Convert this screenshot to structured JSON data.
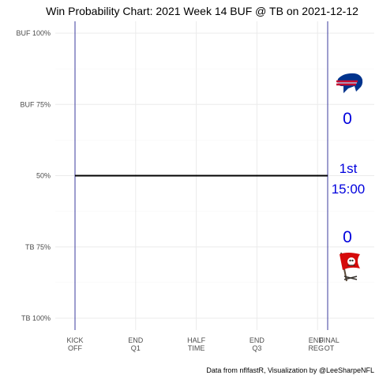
{
  "chart_data": {
    "type": "line",
    "title": "Win Probability Chart: 2021 Week 14 BUF @ TB on 2021-12-12",
    "xlabel": "",
    "ylabel": "",
    "y_ticks": [
      {
        "value": 1.0,
        "label": "BUF 100%"
      },
      {
        "value": 0.75,
        "label": "BUF 75%"
      },
      {
        "value": 0.5,
        "label": "50%"
      },
      {
        "value": 0.25,
        "label": "TB 75%"
      },
      {
        "value": 0.0,
        "label": "TB 100%"
      }
    ],
    "ylim": [
      0,
      1
    ],
    "x_ticks": [
      {
        "value": 0,
        "label": [
          "KICK",
          "OFF"
        ]
      },
      {
        "value": 900,
        "label": [
          "END",
          "Q1"
        ]
      },
      {
        "value": 1800,
        "label": [
          "HALF",
          "TIME"
        ]
      },
      {
        "value": 2700,
        "label": [
          "END",
          "Q3"
        ]
      },
      {
        "value": 3600,
        "label": [
          "END",
          "REG"
        ]
      },
      {
        "value": 3750,
        "label": [
          "FINAL",
          "OT"
        ]
      }
    ],
    "xlim": [
      0,
      4200
    ],
    "series": [
      {
        "x": [
          0,
          3750
        ],
        "y": [
          0.5,
          0.5
        ],
        "color": "#000000"
      }
    ],
    "vertical_markers": [
      0,
      3750
    ],
    "grid": true,
    "away_team": {
      "abbr": "BUF",
      "score": "0",
      "color": "#00338d",
      "secondary": "#c60c30",
      "icon": "bills-logo-icon"
    },
    "home_team": {
      "abbr": "TB",
      "score": "0",
      "color": "#d50a0a",
      "secondary": "#34302b",
      "icon": "buccaneers-flag-logo-icon"
    },
    "game_clock": {
      "quarter": "1st",
      "time": "15:00"
    },
    "caption": "Data from nflfastR, Visualization by @LeeSharpeNFL"
  }
}
